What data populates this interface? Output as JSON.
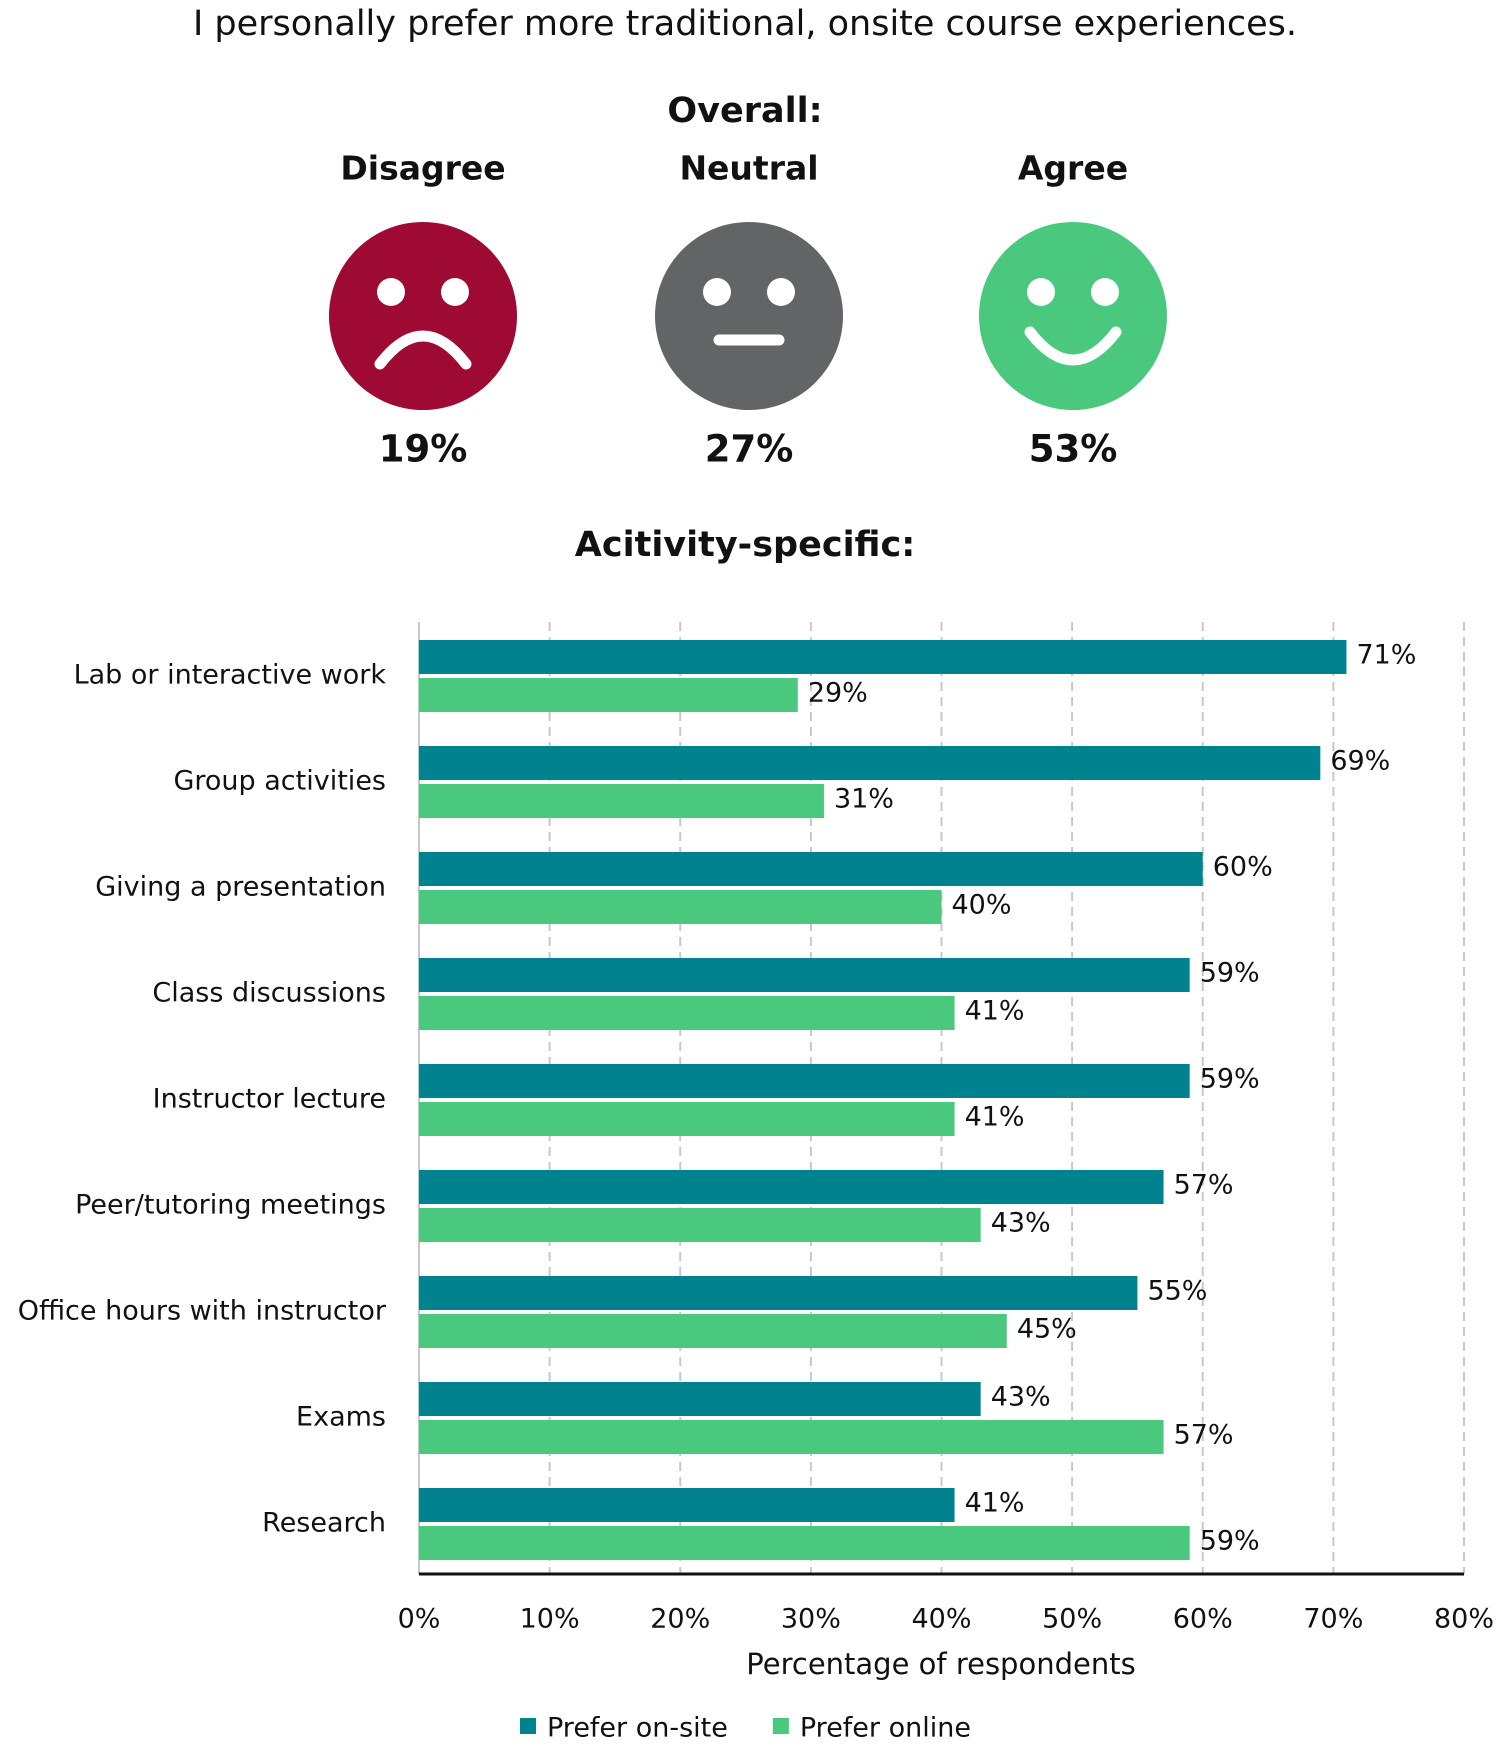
{
  "title": "I personally prefer more traditional, onsite course experiences.",
  "overall": {
    "heading": "Overall:",
    "categories": [
      "Disagree",
      "Neutral",
      "Agree"
    ],
    "values": [
      19,
      27,
      53
    ],
    "value_labels": [
      "19%",
      "27%",
      "53%"
    ],
    "colors": [
      "#9e0a33",
      "#636466",
      "#4ac97e"
    ]
  },
  "chart_data": {
    "type": "hbar",
    "title": "Acitivity-specific:",
    "categories": [
      "Lab or interactive work",
      "Group activities",
      "Giving a presentation",
      "Class discussions",
      "Instructor lecture",
      "Peer/tutoring meetings",
      "Office hours with instructor",
      "Exams",
      "Research"
    ],
    "series": [
      {
        "name": "Prefer on-site",
        "color": "#00838f",
        "values": [
          71,
          69,
          60,
          59,
          59,
          57,
          55,
          43,
          41
        ],
        "value_labels": [
          "71%",
          "69%",
          "60%",
          "59%",
          "59%",
          "57%",
          "55%",
          "43%",
          "41%"
        ]
      },
      {
        "name": "Prefer online",
        "color": "#4ac97e",
        "values": [
          29,
          31,
          40,
          41,
          41,
          43,
          45,
          57,
          59
        ],
        "value_labels": [
          "29%",
          "31%",
          "40%",
          "41%",
          "41%",
          "43%",
          "45%",
          "57%",
          "59%"
        ]
      }
    ],
    "xlabel": "Percentage of respondents",
    "xlim": [
      0,
      80
    ],
    "xticks": [
      {
        "value": 0,
        "label": "0%"
      },
      {
        "value": 10,
        "label": "10%"
      },
      {
        "value": 20,
        "label": "20%"
      },
      {
        "value": 30,
        "label": "30%"
      },
      {
        "value": 40,
        "label": "40%"
      },
      {
        "value": 50,
        "label": "50%"
      },
      {
        "value": 60,
        "label": "60%"
      },
      {
        "value": 70,
        "label": "70%"
      },
      {
        "value": 80,
        "label": "80%"
      }
    ],
    "grid": true,
    "legend": "bottom"
  }
}
